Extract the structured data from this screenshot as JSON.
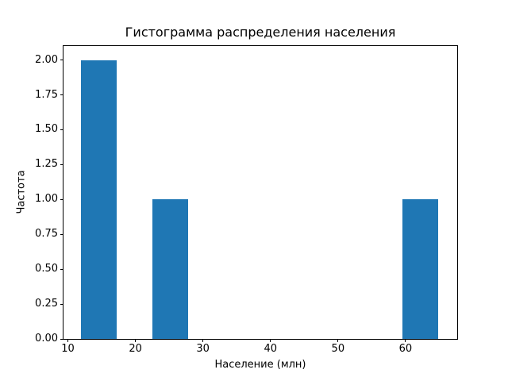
{
  "chart_data": {
    "type": "bar",
    "subtype": "histogram",
    "title": "Гистограмма распределения населения",
    "xlabel": "Население (млн)",
    "ylabel": "Частота",
    "bar_color": "#1f77b4",
    "axis_color": "#000000",
    "background_color": "#ffffff",
    "grid": false,
    "legend": false,
    "xlim": [
      9.35,
      67.65
    ],
    "ylim": [
      0,
      2.1
    ],
    "xticks": [
      10,
      20,
      30,
      40,
      50,
      60
    ],
    "yticks": [
      0.0,
      0.25,
      0.5,
      0.75,
      1.0,
      1.25,
      1.5,
      1.75,
      2.0
    ],
    "ytick_labels": [
      "0.00",
      "0.25",
      "0.50",
      "0.75",
      "1.00",
      "1.25",
      "1.50",
      "1.75",
      "2.00"
    ],
    "bins": [
      {
        "x0": 12.0,
        "x1": 17.3,
        "count": 2
      },
      {
        "x0": 22.6,
        "x1": 27.9,
        "count": 1
      },
      {
        "x0": 59.7,
        "x1": 65.0,
        "count": 1
      }
    ]
  }
}
